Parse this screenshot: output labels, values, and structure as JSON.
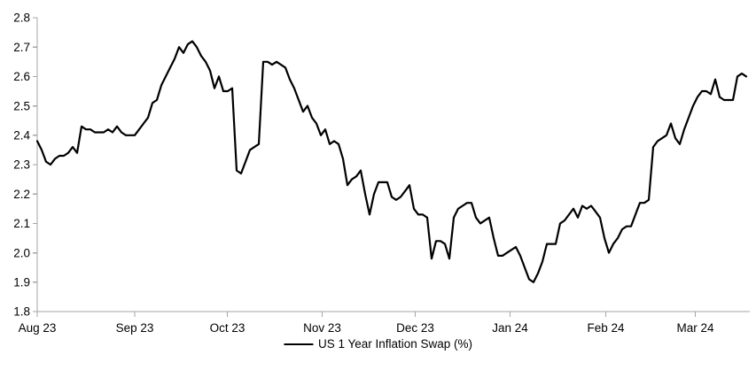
{
  "chart_data": {
    "type": "line",
    "title": "",
    "legend_position": "bottom-center",
    "grid": false,
    "background": "#ffffff",
    "axis_color": "#a6a6a6",
    "text_color": "#000000",
    "ylim": [
      1.8,
      2.8
    ],
    "y_tick_labels": [
      "1.8",
      "1.9",
      "2.0",
      "2.1",
      "2.2",
      "2.3",
      "2.4",
      "2.5",
      "2.6",
      "2.7",
      "2.8"
    ],
    "x_ticks": [
      {
        "label": "Aug 23",
        "pos": 0
      },
      {
        "label": "Sep 23",
        "pos": 22
      },
      {
        "label": "Oct 23",
        "pos": 42.9
      },
      {
        "label": "Nov 23",
        "pos": 64.3
      },
      {
        "label": "Dec 23",
        "pos": 85.3
      },
      {
        "label": "Jan 24",
        "pos": 106.7
      },
      {
        "label": "Feb 24",
        "pos": 128.3
      },
      {
        "label": "Mar 24",
        "pos": 148.5
      }
    ],
    "series": [
      {
        "name": "US 1 Year Inflation Swap (%)",
        "color": "#000000",
        "values": [
          2.38,
          2.35,
          2.31,
          2.3,
          2.32,
          2.33,
          2.33,
          2.34,
          2.36,
          2.34,
          2.43,
          2.42,
          2.42,
          2.41,
          2.41,
          2.41,
          2.42,
          2.41,
          2.43,
          2.41,
          2.4,
          2.4,
          2.4,
          2.42,
          2.44,
          2.46,
          2.51,
          2.52,
          2.57,
          2.6,
          2.63,
          2.66,
          2.7,
          2.68,
          2.71,
          2.72,
          2.7,
          2.67,
          2.65,
          2.62,
          2.56,
          2.6,
          2.55,
          2.55,
          2.56,
          2.28,
          2.27,
          2.31,
          2.35,
          2.36,
          2.37,
          2.65,
          2.65,
          2.64,
          2.65,
          2.64,
          2.63,
          2.59,
          2.56,
          2.52,
          2.48,
          2.5,
          2.46,
          2.44,
          2.4,
          2.42,
          2.37,
          2.38,
          2.37,
          2.32,
          2.23,
          2.25,
          2.26,
          2.28,
          2.2,
          2.13,
          2.2,
          2.24,
          2.24,
          2.24,
          2.19,
          2.18,
          2.19,
          2.21,
          2.23,
          2.15,
          2.13,
          2.13,
          2.12,
          1.98,
          2.04,
          2.04,
          2.03,
          1.98,
          2.12,
          2.15,
          2.16,
          2.17,
          2.17,
          2.12,
          2.1,
          2.11,
          2.12,
          2.05,
          1.99,
          1.99,
          2.0,
          2.01,
          2.02,
          1.99,
          1.95,
          1.91,
          1.9,
          1.93,
          1.97,
          2.03,
          2.03,
          2.03,
          2.1,
          2.11,
          2.13,
          2.15,
          2.12,
          2.16,
          2.15,
          2.16,
          2.14,
          2.12,
          2.05,
          2.0,
          2.03,
          2.05,
          2.08,
          2.09,
          2.09,
          2.13,
          2.17,
          2.17,
          2.18,
          2.36,
          2.38,
          2.39,
          2.4,
          2.44,
          2.39,
          2.37,
          2.42,
          2.46,
          2.5,
          2.53,
          2.55,
          2.55,
          2.54,
          2.59,
          2.53,
          2.52,
          2.52,
          2.52,
          2.6,
          2.61,
          2.6
        ]
      }
    ]
  }
}
